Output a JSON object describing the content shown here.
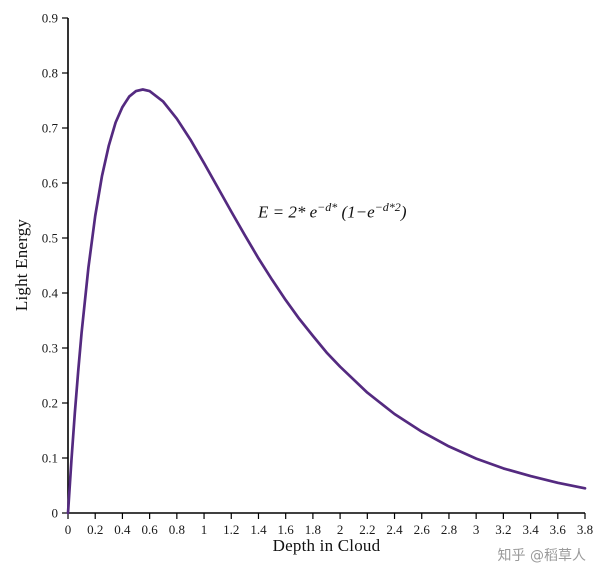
{
  "figure": {
    "x_label": "Depth in Cloud",
    "y_label": "Light Energy",
    "equation": {
      "base1": "E = 2* e",
      "sup1": "−d*",
      "mid": " (1−e",
      "sup2": "−d*2",
      "end": ")"
    },
    "watermark": "知乎 @稻草人"
  },
  "chart_data": {
    "type": "line",
    "title": "",
    "xlabel": "Depth in Cloud",
    "ylabel": "Light Energy",
    "xlim": [
      0,
      3.8
    ],
    "ylim": [
      0,
      0.9
    ],
    "x_ticks": [
      "0",
      "0.2",
      "0.4",
      "0.6",
      "0.8",
      "1",
      "1.2",
      "1.4",
      "1.6",
      "1.8",
      "2",
      "2.2",
      "2.4",
      "2.6",
      "2.8",
      "3",
      "3.2",
      "3.4",
      "3.6",
      "3.8"
    ],
    "y_ticks": [
      "0",
      "0.1",
      "0.2",
      "0.3",
      "0.4",
      "0.5",
      "0.6",
      "0.7",
      "0.8",
      "0.9"
    ],
    "annotation": "E = 2* e−d* (1−e−d*2)",
    "formula": "E(d) = 2·e^(−d)·(1 − e^(−2d))",
    "peak": {
      "d": 0.55,
      "E": 0.77
    },
    "line_color": "#542a80",
    "axis_color": "#000000",
    "grid": false,
    "legend": "none",
    "points": [
      [
        0,
        0
      ],
      [
        0.025,
        0.095
      ],
      [
        0.05,
        0.181
      ],
      [
        0.075,
        0.258
      ],
      [
        0.1,
        0.328
      ],
      [
        0.15,
        0.446
      ],
      [
        0.2,
        0.54
      ],
      [
        0.25,
        0.613
      ],
      [
        0.3,
        0.668
      ],
      [
        0.35,
        0.71
      ],
      [
        0.4,
        0.738
      ],
      [
        0.45,
        0.757
      ],
      [
        0.5,
        0.767
      ],
      [
        0.55,
        0.77
      ],
      [
        0.6,
        0.767
      ],
      [
        0.7,
        0.748
      ],
      [
        0.8,
        0.717
      ],
      [
        0.9,
        0.679
      ],
      [
        1,
        0.636
      ],
      [
        1.1,
        0.592
      ],
      [
        1.2,
        0.548
      ],
      [
        1.3,
        0.505
      ],
      [
        1.4,
        0.463
      ],
      [
        1.5,
        0.424
      ],
      [
        1.6,
        0.387
      ],
      [
        1.7,
        0.353
      ],
      [
        1.8,
        0.322
      ],
      [
        1.9,
        0.292
      ],
      [
        2,
        0.266
      ],
      [
        2.2,
        0.219
      ],
      [
        2.4,
        0.18
      ],
      [
        2.6,
        0.148
      ],
      [
        2.8,
        0.121
      ],
      [
        3,
        0.099
      ],
      [
        3.2,
        0.081
      ],
      [
        3.4,
        0.067
      ],
      [
        3.6,
        0.055
      ],
      [
        3.8,
        0.045
      ]
    ]
  }
}
